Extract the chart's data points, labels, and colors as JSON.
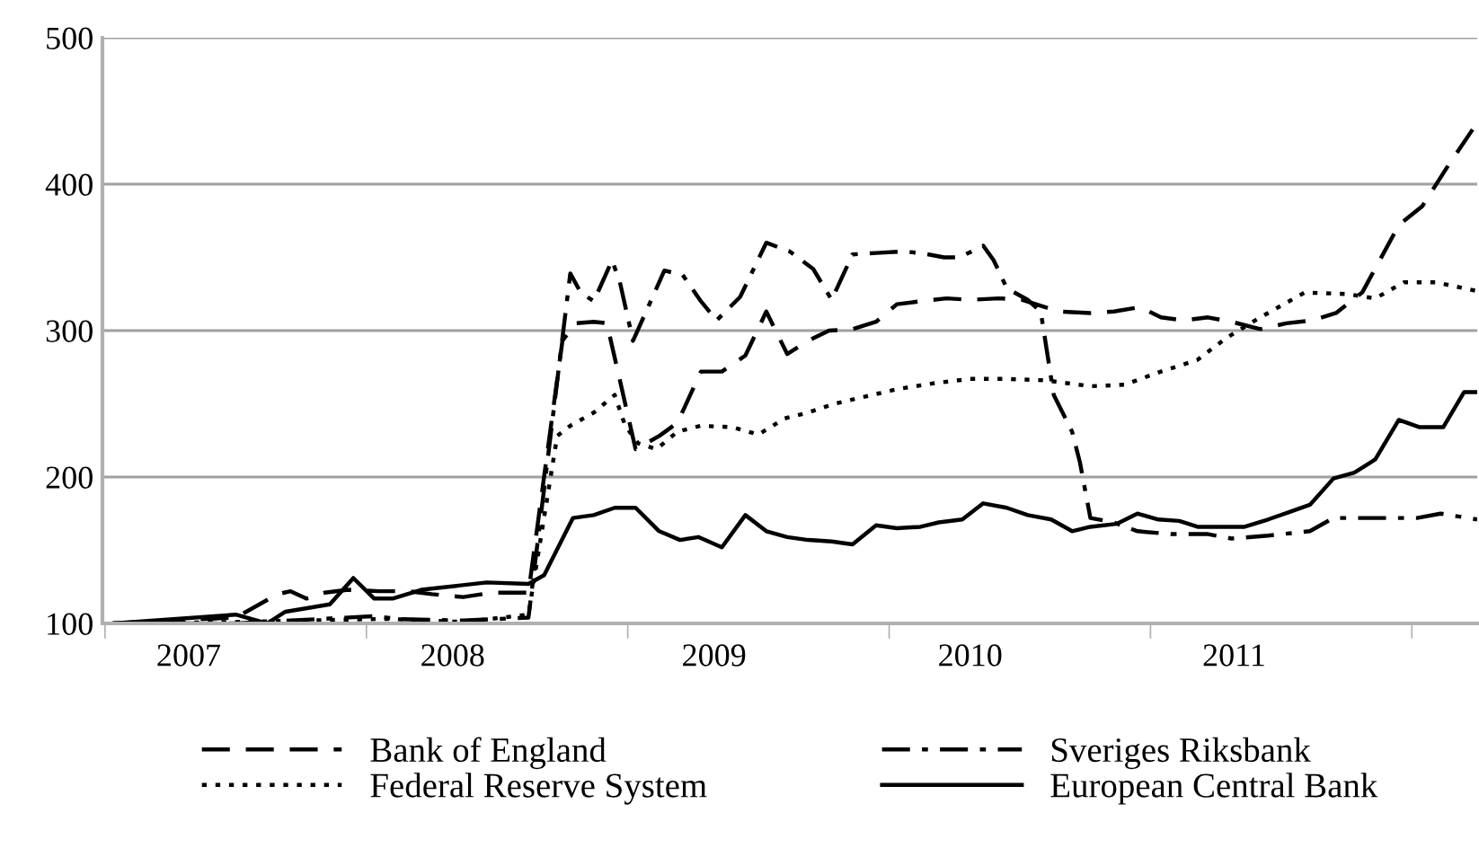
{
  "chart_data": {
    "type": "line",
    "xlim": [
      2006.99,
      2012.25
    ],
    "ylim": [
      100,
      500
    ],
    "yticks": [
      100,
      200,
      300,
      400,
      500
    ],
    "xticks": [
      {
        "value": 2007.0,
        "label": null
      },
      {
        "value": 2007.32,
        "label": "2007"
      },
      {
        "value": 2008.0,
        "label": null
      },
      {
        "value": 2008.33,
        "label": "2008"
      },
      {
        "value": 2009.0,
        "label": null
      },
      {
        "value": 2009.33,
        "label": "2009"
      },
      {
        "value": 2010.0,
        "label": null
      },
      {
        "value": 2010.31,
        "label": "2010"
      },
      {
        "value": 2011.0,
        "label": null
      },
      {
        "value": 2011.32,
        "label": "2011"
      },
      {
        "value": 2012.0,
        "label": null
      }
    ],
    "grid": "y",
    "legend": "bottom",
    "marker": "none",
    "series": [
      {
        "name": "Bank of England",
        "color": "#000000",
        "line_style": "dashed",
        "x": [
          2007.03,
          2007.5,
          2007.66,
          2007.71,
          2007.77,
          2007.84,
          2007.93,
          2008.05,
          2008.16,
          2008.25,
          2008.37,
          2008.48,
          2008.62,
          2008.75,
          2008.8,
          2008.87,
          2008.92,
          2009.03,
          2009.12,
          2009.19,
          2009.28,
          2009.36,
          2009.45,
          2009.53,
          2009.61,
          2009.69,
          2009.77,
          2009.86,
          2009.95,
          2010.03,
          2010.12,
          2010.22,
          2010.31,
          2010.42,
          2010.51,
          2010.65,
          2010.77,
          2010.86,
          2010.96,
          2011.04,
          2011.13,
          2011.22,
          2011.31,
          2011.42,
          2011.52,
          2011.62,
          2011.71,
          2011.81,
          2011.95,
          2012.04,
          2012.14,
          2012.25
        ],
        "values": [
          100,
          104,
          120,
          122,
          117,
          121,
          123,
          122,
          122,
          120,
          118,
          121,
          121,
          293,
          305,
          306,
          305,
          219,
          228,
          237,
          272,
          272,
          283,
          313,
          284,
          293,
          300,
          301,
          306,
          318,
          320,
          322,
          321,
          322,
          321,
          313,
          312,
          313,
          316,
          309,
          307,
          309,
          306,
          301,
          305,
          307,
          312,
          326,
          372,
          385,
          413,
          442
        ]
      },
      {
        "name": "Federal Reserve System",
        "color": "#000000",
        "line_style": "dotted",
        "x": [
          2007.03,
          2007.5,
          2008.03,
          2008.1,
          2008.37,
          2008.62,
          2008.73,
          2008.78,
          2008.87,
          2008.95,
          2008.99,
          2009.04,
          2009.11,
          2009.19,
          2009.28,
          2009.4,
          2009.5,
          2009.6,
          2009.69,
          2009.79,
          2009.91,
          2010.03,
          2010.17,
          2010.31,
          2010.45,
          2010.6,
          2010.77,
          2010.9,
          2011.04,
          2011.18,
          2011.29,
          2011.42,
          2011.59,
          2011.75,
          2011.86,
          2011.97,
          2012.09,
          2012.25
        ],
        "values": [
          100,
          101,
          103,
          103,
          101,
          106,
          228,
          235,
          244,
          256,
          235,
          223,
          219,
          231,
          235,
          234,
          229,
          240,
          244,
          250,
          255,
          260,
          264,
          267,
          267,
          266,
          262,
          263,
          272,
          280,
          295,
          309,
          326,
          325,
          322,
          333,
          333,
          327
        ]
      },
      {
        "name": "Sveriges Riksbank",
        "color": "#000000",
        "line_style": "dashdot",
        "x": [
          2007.03,
          2007.5,
          2008.03,
          2008.12,
          2008.37,
          2008.62,
          2008.78,
          2008.82,
          2008.87,
          2008.94,
          2008.97,
          2009.02,
          2009.08,
          2009.14,
          2009.21,
          2009.28,
          2009.34,
          2009.43,
          2009.53,
          2009.62,
          2009.71,
          2009.78,
          2009.86,
          2009.95,
          2010.05,
          2010.12,
          2010.21,
          2010.27,
          2010.36,
          2010.4,
          2010.45,
          2010.53,
          2010.58,
          2010.63,
          2010.7,
          2010.73,
          2010.77,
          2010.86,
          2010.95,
          2011.08,
          2011.22,
          2011.31,
          2011.45,
          2011.61,
          2011.7,
          2011.86,
          2012.02,
          2012.11,
          2012.25
        ],
        "values": [
          100,
          100,
          105,
          103,
          102,
          104,
          339,
          326,
          320,
          348,
          333,
          293,
          317,
          341,
          338,
          320,
          307,
          323,
          360,
          354,
          342,
          321,
          352,
          353,
          354,
          353,
          350,
          350,
          358,
          348,
          329,
          321,
          313,
          256,
          231,
          210,
          172,
          169,
          163,
          161,
          161,
          158,
          160,
          163,
          172,
          172,
          172,
          175,
          171
        ]
      },
      {
        "name": "European Central Bank",
        "color": "#000000",
        "line_style": "solid",
        "x": [
          2007.03,
          2007.5,
          2007.62,
          2007.69,
          2007.86,
          2007.95,
          2008.03,
          2008.1,
          2008.21,
          2008.46,
          2008.62,
          2008.68,
          2008.79,
          2008.87,
          2008.95,
          2009.03,
          2009.12,
          2009.2,
          2009.27,
          2009.36,
          2009.45,
          2009.53,
          2009.61,
          2009.69,
          2009.78,
          2009.86,
          2009.95,
          2010.03,
          2010.12,
          2010.19,
          2010.28,
          2010.36,
          2010.45,
          2010.53,
          2010.62,
          2010.7,
          2010.77,
          2010.87,
          2010.95,
          2011.03,
          2011.11,
          2011.18,
          2011.27,
          2011.36,
          2011.45,
          2011.53,
          2011.61,
          2011.7,
          2011.78,
          2011.86,
          2011.95,
          2012.03,
          2012.12,
          2012.2,
          2012.25
        ],
        "values": [
          100,
          106,
          100,
          108,
          113,
          131,
          117,
          117,
          123,
          128,
          127,
          133,
          172,
          174,
          179,
          179,
          163,
          157,
          159,
          152,
          174,
          163,
          159,
          157,
          156,
          154,
          167,
          165,
          166,
          169,
          171,
          182,
          179,
          174,
          171,
          163,
          166,
          168,
          175,
          171,
          170,
          166,
          166,
          166,
          171,
          176,
          181,
          199,
          203,
          212,
          239,
          234,
          234,
          258,
          258
        ]
      }
    ]
  }
}
